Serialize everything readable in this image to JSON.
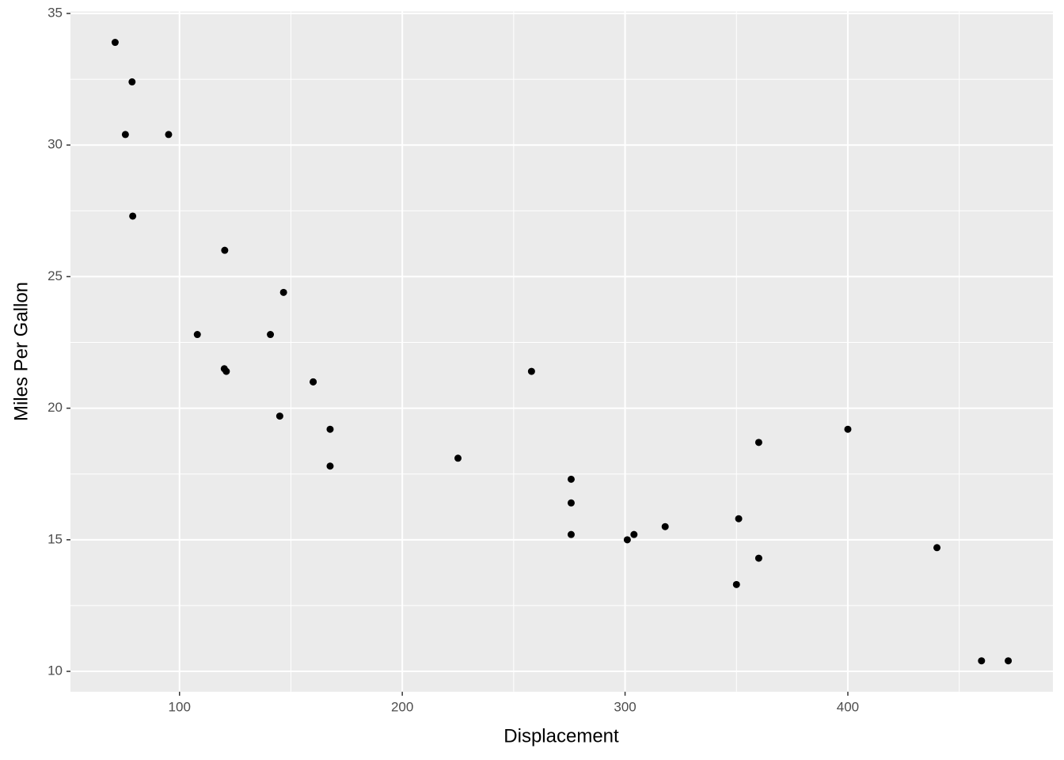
{
  "chart_data": {
    "type": "scatter",
    "x_label": "Displacement",
    "y_label": "Miles Per Gallon",
    "x": [
      160,
      160,
      108,
      258,
      360,
      225,
      360,
      146.7,
      140.8,
      167.6,
      167.6,
      275.8,
      275.8,
      275.8,
      472,
      460,
      440,
      78.7,
      75.7,
      71.1,
      120.1,
      318,
      304,
      350,
      400,
      79,
      120.3,
      95.1,
      351,
      145,
      301,
      121
    ],
    "values": [
      21.0,
      21.0,
      22.8,
      21.4,
      18.7,
      18.1,
      14.3,
      24.4,
      22.8,
      19.2,
      17.8,
      16.4,
      17.3,
      15.2,
      10.4,
      10.4,
      14.7,
      32.4,
      30.4,
      33.9,
      21.5,
      15.5,
      15.2,
      13.3,
      19.2,
      27.3,
      26.0,
      30.4,
      15.8,
      19.7,
      15.0,
      21.4
    ],
    "color": "#000000",
    "xlim": [
      51.05,
      492.05
    ],
    "ylim": [
      9.225,
      35.075
    ],
    "xticks": [
      100,
      200,
      300,
      400
    ],
    "yticks": [
      10,
      15,
      20,
      25,
      30,
      35
    ],
    "x_minor_breaks": [
      150,
      250,
      350,
      450
    ],
    "y_minor_breaks": [
      12.5,
      17.5,
      22.5,
      27.5,
      32.5
    ],
    "grid": true,
    "panel_color": "#ebebeb",
    "grid_color": "#ffffff"
  }
}
